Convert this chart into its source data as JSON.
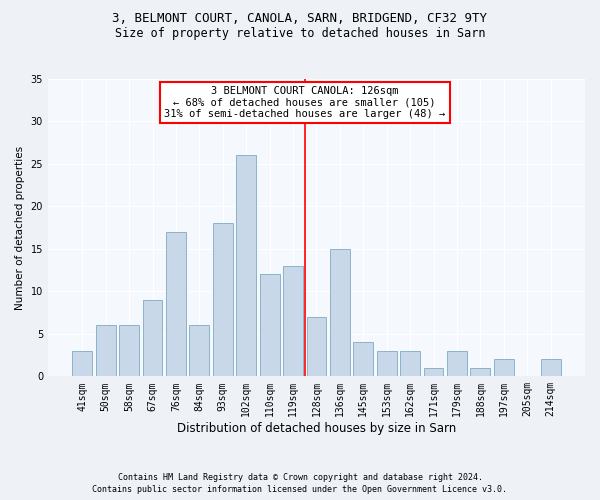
{
  "title1": "3, BELMONT COURT, CANOLA, SARN, BRIDGEND, CF32 9TY",
  "title2": "Size of property relative to detached houses in Sarn",
  "xlabel": "Distribution of detached houses by size in Sarn",
  "ylabel": "Number of detached properties",
  "categories": [
    "41sqm",
    "50sqm",
    "58sqm",
    "67sqm",
    "76sqm",
    "84sqm",
    "93sqm",
    "102sqm",
    "110sqm",
    "119sqm",
    "128sqm",
    "136sqm",
    "145sqm",
    "153sqm",
    "162sqm",
    "171sqm",
    "179sqm",
    "188sqm",
    "197sqm",
    "205sqm",
    "214sqm"
  ],
  "values": [
    3,
    6,
    6,
    9,
    17,
    6,
    18,
    26,
    12,
    13,
    7,
    15,
    4,
    3,
    3,
    1,
    3,
    1,
    2,
    0,
    2
  ],
  "bar_color": "#c8d8e8",
  "bar_edge_color": "#8ab4cc",
  "annotation_text": "3 BELMONT COURT CANOLA: 126sqm\n← 68% of detached houses are smaller (105)\n31% of semi-detached houses are larger (48) →",
  "annotation_box_color": "white",
  "annotation_box_edge_color": "red",
  "vline_color": "red",
  "ylim": [
    0,
    35
  ],
  "yticks": [
    0,
    5,
    10,
    15,
    20,
    25,
    30,
    35
  ],
  "footer1": "Contains HM Land Registry data © Crown copyright and database right 2024.",
  "footer2": "Contains public sector information licensed under the Open Government Licence v3.0.",
  "bg_color": "#eef2f7",
  "plot_bg_color": "#f5f8fc",
  "grid_color": "#ffffff",
  "title1_fontsize": 9,
  "title2_fontsize": 8.5,
  "xlabel_fontsize": 8.5,
  "ylabel_fontsize": 7.5,
  "tick_fontsize": 7,
  "annot_fontsize": 7.5,
  "footer_fontsize": 6
}
